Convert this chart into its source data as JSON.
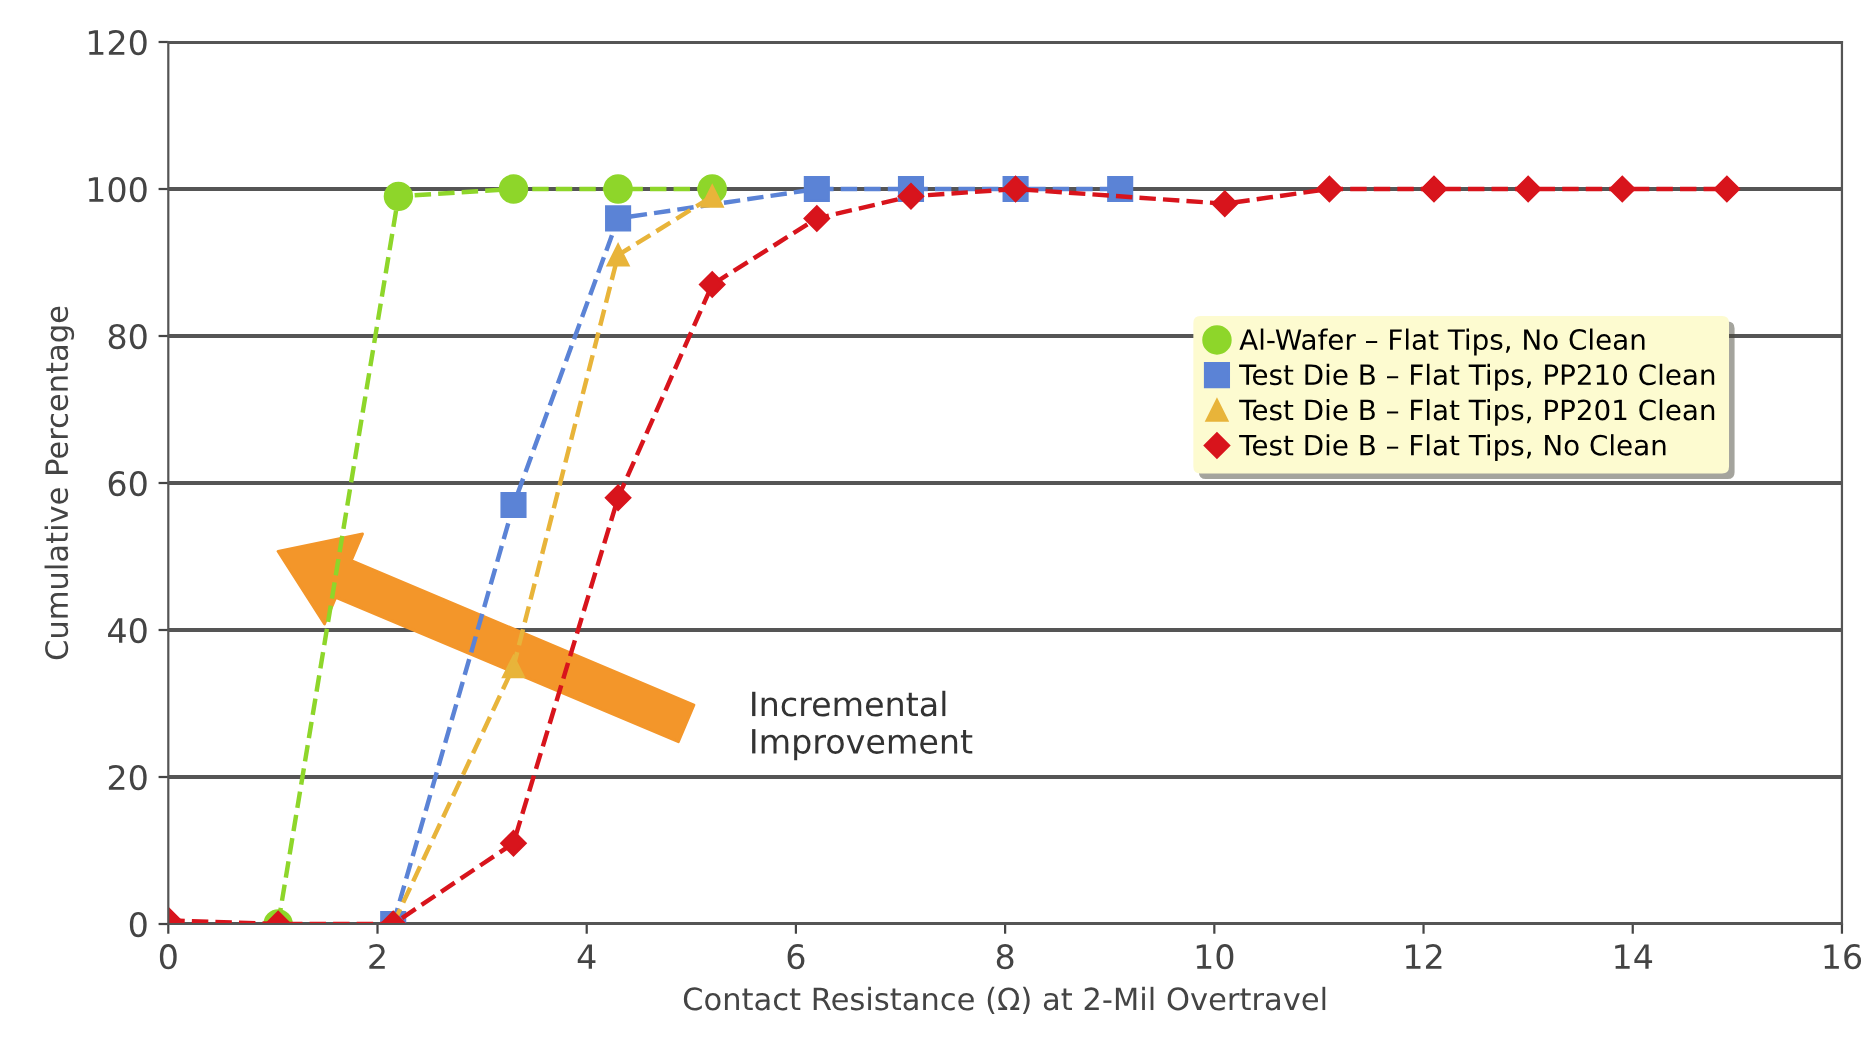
{
  "chart_data": {
    "type": "line",
    "xlabel": "Contact Resistance (Ω) at 2-Mil Overtravel",
    "ylabel": "Cumulative Percentage",
    "xlim": [
      0,
      16
    ],
    "xticks": [
      0,
      2,
      4,
      6,
      8,
      10,
      12,
      14,
      16
    ],
    "ylim": [
      0,
      120
    ],
    "yticks": [
      0,
      20,
      40,
      60,
      80,
      100,
      120
    ],
    "grid": "y",
    "legend": "right",
    "line_style": "dashed",
    "annotations": [
      "Incremental\nImprovement"
    ],
    "series": [
      {
        "name": "Al-Wafer – Flat Tips, No Clean",
        "color": "#8ed62a",
        "marker": "circle",
        "x": [
          1.05,
          2.2,
          3.3,
          4.3,
          5.2
        ],
        "values": [
          0,
          99,
          100,
          100,
          100
        ]
      },
      {
        "name": "Test Die B – Flat Tips, PP210 Clean",
        "color": "#5b83d6",
        "marker": "square",
        "x": [
          2.15,
          3.3,
          4.3,
          6.2,
          7.1,
          8.1,
          9.1
        ],
        "values": [
          0,
          57,
          96,
          100,
          100,
          100,
          100
        ]
      },
      {
        "name": "Test Die B – Flat Tips, PP201 Clean",
        "color": "#e8b43a",
        "marker": "triangle",
        "x": [
          2.15,
          3.3,
          4.3,
          5.2
        ],
        "values": [
          0,
          35,
          91,
          99
        ]
      },
      {
        "name": "Test Die B – Flat Tips, No Clean",
        "color": "#d8141c",
        "marker": "diamond",
        "x": [
          0,
          1.05,
          2.15,
          3.3,
          4.3,
          5.2,
          6.2,
          7.1,
          8.1,
          10.1,
          11.1,
          12.1,
          13.0,
          13.9,
          14.9
        ],
        "values": [
          0.5,
          0,
          0,
          11,
          58,
          87,
          96,
          99,
          100,
          98,
          100,
          100,
          100,
          100,
          100
        ]
      }
    ]
  }
}
